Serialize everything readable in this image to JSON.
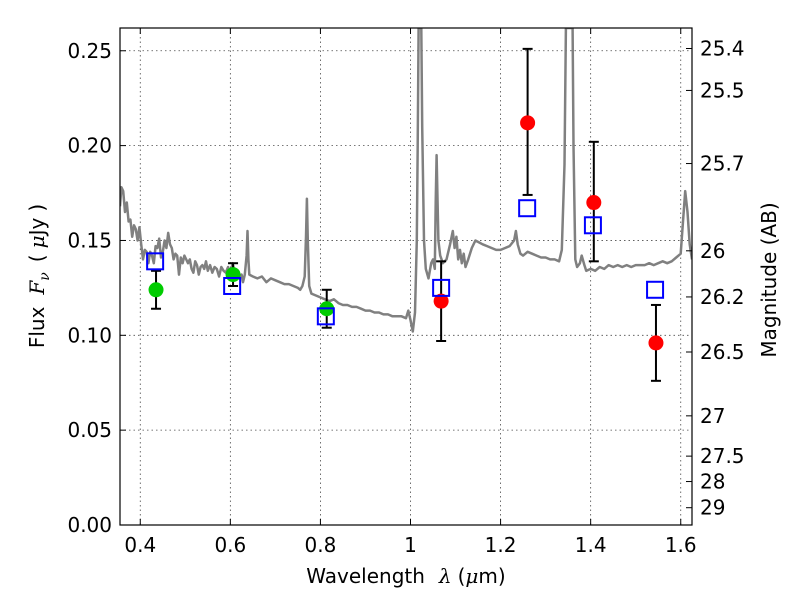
{
  "chart_data": {
    "type": "scatter",
    "xlabel": {
      "text": "Wavelength",
      "symbol": "λ",
      "unit_open": "(",
      "unit_mu": "μ",
      "unit_rest": "m)"
    },
    "ylabel": {
      "text": "Flux",
      "symbol": "F",
      "subscript": "ν",
      "unit_open": "(",
      "unit_mu": "μ",
      "unit_rest": "Jy",
      "unit_close": ")"
    },
    "y2label": {
      "text": "Magnitude (AB)"
    },
    "xlim": [
      0.355,
      1.625
    ],
    "ylim": [
      0.0,
      0.262
    ],
    "grid": true,
    "xticks": [
      {
        "value": 0.4,
        "label": "0.4"
      },
      {
        "value": 0.6,
        "label": "0.6"
      },
      {
        "value": 0.8,
        "label": "0.8"
      },
      {
        "value": 1.0,
        "label": "1"
      },
      {
        "value": 1.2,
        "label": "1.2"
      },
      {
        "value": 1.4,
        "label": "1.4"
      },
      {
        "value": 1.6,
        "label": "1.6"
      }
    ],
    "yticks": [
      {
        "value": 0.0,
        "label": "0.00"
      },
      {
        "value": 0.05,
        "label": "0.05"
      },
      {
        "value": 0.1,
        "label": "0.10"
      },
      {
        "value": 0.15,
        "label": "0.15"
      },
      {
        "value": 0.2,
        "label": "0.20"
      },
      {
        "value": 0.25,
        "label": "0.25"
      }
    ],
    "y2ticks": [
      {
        "value": 25.4,
        "label": "25.4"
      },
      {
        "value": 25.5,
        "label": "25.5"
      },
      {
        "value": 25.7,
        "label": "25.7"
      },
      {
        "value": 26.0,
        "label": "26"
      },
      {
        "value": 26.2,
        "label": "26.2"
      },
      {
        "value": 26.5,
        "label": "26.5"
      },
      {
        "value": 27.0,
        "label": "27"
      },
      {
        "value": 27.5,
        "label": "27.5"
      },
      {
        "value": 28.0,
        "label": "28"
      },
      {
        "value": 29.0,
        "label": "29"
      }
    ],
    "model_spectrum": {
      "color": "#808080",
      "points": [
        [
          0.355,
          0.168
        ],
        [
          0.358,
          0.178
        ],
        [
          0.362,
          0.176
        ],
        [
          0.366,
          0.165
        ],
        [
          0.37,
          0.17
        ],
        [
          0.374,
          0.16
        ],
        [
          0.378,
          0.161
        ],
        [
          0.382,
          0.152
        ],
        [
          0.386,
          0.158
        ],
        [
          0.39,
          0.156
        ],
        [
          0.394,
          0.15
        ],
        [
          0.398,
          0.157
        ],
        [
          0.402,
          0.148
        ],
        [
          0.406,
          0.14
        ],
        [
          0.41,
          0.145
        ],
        [
          0.414,
          0.144
        ],
        [
          0.418,
          0.138
        ],
        [
          0.422,
          0.144
        ],
        [
          0.426,
          0.142
        ],
        [
          0.43,
          0.138
        ],
        [
          0.434,
          0.147
        ],
        [
          0.438,
          0.146
        ],
        [
          0.442,
          0.151
        ],
        [
          0.446,
          0.141
        ],
        [
          0.45,
          0.144
        ],
        [
          0.454,
          0.15
        ],
        [
          0.458,
          0.146
        ],
        [
          0.462,
          0.154
        ],
        [
          0.466,
          0.148
        ],
        [
          0.47,
          0.146
        ],
        [
          0.474,
          0.14
        ],
        [
          0.478,
          0.143
        ],
        [
          0.482,
          0.142
        ],
        [
          0.486,
          0.132
        ],
        [
          0.49,
          0.141
        ],
        [
          0.494,
          0.138
        ],
        [
          0.498,
          0.142
        ],
        [
          0.502,
          0.14
        ],
        [
          0.506,
          0.138
        ],
        [
          0.51,
          0.14
        ],
        [
          0.514,
          0.135
        ],
        [
          0.518,
          0.133
        ],
        [
          0.522,
          0.139
        ],
        [
          0.526,
          0.137
        ],
        [
          0.53,
          0.132
        ],
        [
          0.534,
          0.136
        ],
        [
          0.538,
          0.137
        ],
        [
          0.542,
          0.135
        ],
        [
          0.546,
          0.139
        ],
        [
          0.55,
          0.134
        ],
        [
          0.555,
          0.137
        ],
        [
          0.56,
          0.133
        ],
        [
          0.565,
          0.136
        ],
        [
          0.57,
          0.135
        ],
        [
          0.575,
          0.131
        ],
        [
          0.58,
          0.136
        ],
        [
          0.585,
          0.134
        ],
        [
          0.59,
          0.133
        ],
        [
          0.595,
          0.136
        ],
        [
          0.6,
          0.132
        ],
        [
          0.605,
          0.138
        ],
        [
          0.61,
          0.133
        ],
        [
          0.615,
          0.132
        ],
        [
          0.62,
          0.13
        ],
        [
          0.625,
          0.132
        ],
        [
          0.628,
          0.128
        ],
        [
          0.632,
          0.132
        ],
        [
          0.636,
          0.142
        ],
        [
          0.638,
          0.155
        ],
        [
          0.64,
          0.14
        ],
        [
          0.642,
          0.132
        ],
        [
          0.65,
          0.131
        ],
        [
          0.66,
          0.13
        ],
        [
          0.67,
          0.131
        ],
        [
          0.68,
          0.128
        ],
        [
          0.69,
          0.13
        ],
        [
          0.7,
          0.129
        ],
        [
          0.71,
          0.128
        ],
        [
          0.72,
          0.127
        ],
        [
          0.73,
          0.127
        ],
        [
          0.74,
          0.126
        ],
        [
          0.75,
          0.125
        ],
        [
          0.755,
          0.124
        ],
        [
          0.76,
          0.126
        ],
        [
          0.765,
          0.131
        ],
        [
          0.768,
          0.152
        ],
        [
          0.77,
          0.172
        ],
        [
          0.772,
          0.15
        ],
        [
          0.775,
          0.126
        ],
        [
          0.78,
          0.122
        ],
        [
          0.79,
          0.121
        ],
        [
          0.8,
          0.12
        ],
        [
          0.81,
          0.119
        ],
        [
          0.82,
          0.118
        ],
        [
          0.83,
          0.119
        ],
        [
          0.84,
          0.117
        ],
        [
          0.85,
          0.116
        ],
        [
          0.86,
          0.116
        ],
        [
          0.87,
          0.115
        ],
        [
          0.88,
          0.115
        ],
        [
          0.89,
          0.114
        ],
        [
          0.9,
          0.113
        ],
        [
          0.91,
          0.113
        ],
        [
          0.92,
          0.112
        ],
        [
          0.93,
          0.112
        ],
        [
          0.94,
          0.111
        ],
        [
          0.95,
          0.111
        ],
        [
          0.96,
          0.11
        ],
        [
          0.97,
          0.11
        ],
        [
          0.98,
          0.11
        ],
        [
          0.99,
          0.109
        ],
        [
          0.995,
          0.113
        ],
        [
          1.0,
          0.108
        ],
        [
          1.005,
          0.102
        ],
        [
          1.01,
          0.112
        ],
        [
          1.014,
          0.15
        ],
        [
          1.016,
          0.2
        ],
        [
          1.018,
          0.262
        ],
        [
          1.024,
          0.262
        ],
        [
          1.026,
          0.21
        ],
        [
          1.03,
          0.15
        ],
        [
          1.034,
          0.135
        ],
        [
          1.04,
          0.13
        ],
        [
          1.046,
          0.138
        ],
        [
          1.05,
          0.14
        ],
        [
          1.054,
          0.135
        ],
        [
          1.056,
          0.17
        ],
        [
          1.058,
          0.195
        ],
        [
          1.06,
          0.172
        ],
        [
          1.062,
          0.15
        ],
        [
          1.066,
          0.142
        ],
        [
          1.072,
          0.138
        ],
        [
          1.08,
          0.14
        ],
        [
          1.088,
          0.148
        ],
        [
          1.094,
          0.155
        ],
        [
          1.098,
          0.146
        ],
        [
          1.102,
          0.152
        ],
        [
          1.106,
          0.14
        ],
        [
          1.11,
          0.145
        ],
        [
          1.114,
          0.138
        ],
        [
          1.118,
          0.143
        ],
        [
          1.122,
          0.136
        ],
        [
          1.128,
          0.14
        ],
        [
          1.136,
          0.146
        ],
        [
          1.144,
          0.15
        ],
        [
          1.152,
          0.149
        ],
        [
          1.16,
          0.148
        ],
        [
          1.17,
          0.147
        ],
        [
          1.18,
          0.146
        ],
        [
          1.19,
          0.145
        ],
        [
          1.2,
          0.145
        ],
        [
          1.21,
          0.146
        ],
        [
          1.22,
          0.147
        ],
        [
          1.23,
          0.15
        ],
        [
          1.234,
          0.155
        ],
        [
          1.238,
          0.148
        ],
        [
          1.244,
          0.143
        ],
        [
          1.25,
          0.142
        ],
        [
          1.26,
          0.144
        ],
        [
          1.27,
          0.143
        ],
        [
          1.28,
          0.142
        ],
        [
          1.29,
          0.141
        ],
        [
          1.3,
          0.141
        ],
        [
          1.31,
          0.14
        ],
        [
          1.32,
          0.14
        ],
        [
          1.33,
          0.139
        ],
        [
          1.336,
          0.145
        ],
        [
          1.342,
          0.19
        ],
        [
          1.345,
          0.262
        ],
        [
          1.36,
          0.262
        ],
        [
          1.362,
          0.2
        ],
        [
          1.366,
          0.14
        ],
        [
          1.37,
          0.136
        ],
        [
          1.376,
          0.138
        ],
        [
          1.38,
          0.142
        ],
        [
          1.386,
          0.137
        ],
        [
          1.39,
          0.134
        ],
        [
          1.4,
          0.135
        ],
        [
          1.41,
          0.134
        ],
        [
          1.42,
          0.136
        ],
        [
          1.43,
          0.135
        ],
        [
          1.44,
          0.137
        ],
        [
          1.45,
          0.136
        ],
        [
          1.46,
          0.137
        ],
        [
          1.47,
          0.136
        ],
        [
          1.48,
          0.137
        ],
        [
          1.49,
          0.136
        ],
        [
          1.5,
          0.137
        ],
        [
          1.51,
          0.137
        ],
        [
          1.52,
          0.137
        ],
        [
          1.53,
          0.138
        ],
        [
          1.54,
          0.137
        ],
        [
          1.55,
          0.138
        ],
        [
          1.56,
          0.139
        ],
        [
          1.57,
          0.138
        ],
        [
          1.58,
          0.139
        ],
        [
          1.59,
          0.141
        ],
        [
          1.6,
          0.143
        ],
        [
          1.605,
          0.16
        ],
        [
          1.61,
          0.176
        ],
        [
          1.615,
          0.165
        ],
        [
          1.62,
          0.148
        ],
        [
          1.625,
          0.14
        ]
      ]
    },
    "series": [
      {
        "marker": "circle",
        "color": "#00cc00",
        "points": [
          {
            "x": 0.435,
            "y": 0.124,
            "yerr": [
              0.114,
              0.134
            ]
          },
          {
            "x": 0.606,
            "y": 0.132,
            "yerr": [
              0.126,
              0.138
            ]
          },
          {
            "x": 0.814,
            "y": 0.114,
            "yerr": [
              0.104,
              0.124
            ]
          }
        ]
      },
      {
        "marker": "circle",
        "color": "#ff0000",
        "points": [
          {
            "x": 1.068,
            "y": 0.118,
            "yerr": [
              0.097,
              0.139
            ]
          },
          {
            "x": 1.26,
            "y": 0.212,
            "yerr": [
              0.174,
              0.251
            ]
          },
          {
            "x": 1.407,
            "y": 0.17,
            "yerr": [
              0.139,
              0.202
            ]
          },
          {
            "x": 1.545,
            "y": 0.096,
            "yerr": [
              0.076,
              0.116
            ]
          }
        ]
      },
      {
        "marker": "open-square",
        "color": "#0000ff",
        "points": [
          {
            "x": 0.433,
            "y": 0.139
          },
          {
            "x": 0.604,
            "y": 0.126
          },
          {
            "x": 0.812,
            "y": 0.11
          },
          {
            "x": 1.068,
            "y": 0.125
          },
          {
            "x": 1.259,
            "y": 0.167
          },
          {
            "x": 1.405,
            "y": 0.158
          },
          {
            "x": 1.543,
            "y": 0.124
          }
        ]
      }
    ]
  }
}
